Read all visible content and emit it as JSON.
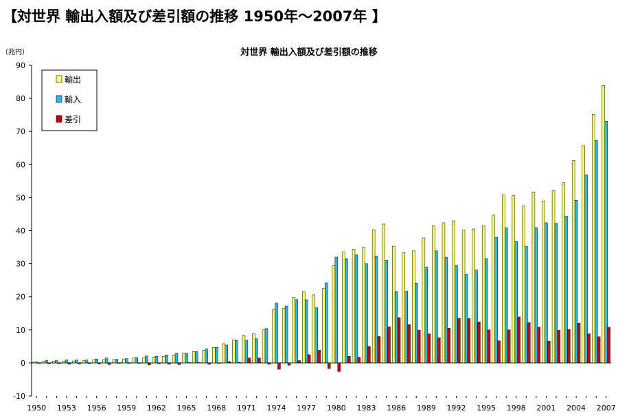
{
  "page_title": "【対世界 輸出入額及び差引額の推移 1950年～2007年 】",
  "chart_data": {
    "type": "bar",
    "title": "対世界 輸出入額及び差引額の推移",
    "ylabel": "（兆円）",
    "xlabel": "",
    "ylim": [
      -10,
      90
    ],
    "yticks": [
      -10,
      0,
      10,
      20,
      30,
      40,
      50,
      60,
      70,
      80,
      90
    ],
    "grid": false,
    "legend_position": "top-left",
    "categories": [
      "1950",
      "1951",
      "1952",
      "1953",
      "1954",
      "1955",
      "1956",
      "1957",
      "1958",
      "1959",
      "1960",
      "1961",
      "1962",
      "1963",
      "1964",
      "1965",
      "1966",
      "1967",
      "1968",
      "1969",
      "1970",
      "1971",
      "1972",
      "1973",
      "1974",
      "1975",
      "1976",
      "1977",
      "1978",
      "1979",
      "1980",
      "1981",
      "1982",
      "1983",
      "1984",
      "1985",
      "1986",
      "1987",
      "1988",
      "1989",
      "1990",
      "1991",
      "1992",
      "1993",
      "1994",
      "1995",
      "1996",
      "1997",
      "1998",
      "1999",
      "2000",
      "2001",
      "2002",
      "2003",
      "2004",
      "2005",
      "2006",
      "2007"
    ],
    "x_tick_labels": [
      "1950",
      "1953",
      "1956",
      "1959",
      "1962",
      "1965",
      "1968",
      "1971",
      "1974",
      "1977",
      "1980",
      "1983",
      "1986",
      "1989",
      "1992",
      "1995",
      "1998",
      "2001",
      "2004",
      "2007"
    ],
    "series": [
      {
        "name": "輸出",
        "color": "#ffff66",
        "values": [
          0.3,
          0.5,
          0.5,
          0.5,
          0.6,
          0.7,
          0.9,
          1.0,
          1.0,
          1.2,
          1.5,
          1.5,
          1.8,
          2.0,
          2.4,
          3.0,
          3.5,
          3.8,
          4.7,
          5.8,
          7.0,
          8.4,
          8.8,
          10.0,
          16.2,
          16.5,
          19.9,
          21.6,
          20.6,
          22.5,
          29.4,
          33.5,
          34.4,
          35.0,
          40.3,
          42.0,
          35.3,
          33.3,
          33.9,
          37.8,
          41.5,
          42.4,
          43.0,
          40.2,
          40.5,
          41.5,
          44.7,
          50.9,
          50.6,
          47.5,
          51.7,
          49.0,
          52.1,
          54.5,
          61.2,
          65.7,
          75.2,
          83.9
        ]
      },
      {
        "name": "輸入",
        "color": "#33b5e5",
        "values": [
          0.3,
          0.7,
          0.7,
          0.9,
          0.9,
          0.9,
          1.2,
          1.5,
          1.1,
          1.3,
          1.6,
          2.1,
          2.0,
          2.4,
          2.9,
          2.9,
          3.4,
          4.2,
          4.7,
          5.4,
          6.8,
          6.9,
          7.3,
          10.4,
          18.1,
          17.2,
          19.2,
          19.1,
          16.7,
          24.2,
          32.0,
          31.5,
          32.7,
          30.0,
          32.3,
          31.1,
          21.6,
          21.7,
          24.0,
          29.0,
          33.9,
          31.9,
          29.5,
          26.8,
          28.1,
          31.5,
          38.0,
          40.9,
          36.7,
          35.3,
          40.9,
          42.4,
          42.2,
          44.4,
          49.2,
          56.9,
          67.3,
          73.1
        ]
      },
      {
        "name": "差引",
        "color": "#cc0000",
        "values": [
          0.0,
          -0.2,
          -0.2,
          -0.4,
          -0.3,
          -0.2,
          -0.3,
          -0.5,
          -0.1,
          -0.1,
          -0.1,
          -0.6,
          -0.2,
          -0.4,
          -0.5,
          0.1,
          0.1,
          -0.4,
          0.0,
          0.4,
          0.2,
          1.5,
          1.5,
          -0.4,
          -1.9,
          -0.7,
          0.7,
          2.5,
          3.9,
          -1.7,
          -2.6,
          2.0,
          1.7,
          5.0,
          8.0,
          10.9,
          13.7,
          11.6,
          9.9,
          8.8,
          7.6,
          10.5,
          13.5,
          13.4,
          12.4,
          10.0,
          6.7,
          10.0,
          13.9,
          12.2,
          10.8,
          6.6,
          9.9,
          10.1,
          12.0,
          8.8,
          7.9,
          10.8
        ]
      }
    ]
  }
}
